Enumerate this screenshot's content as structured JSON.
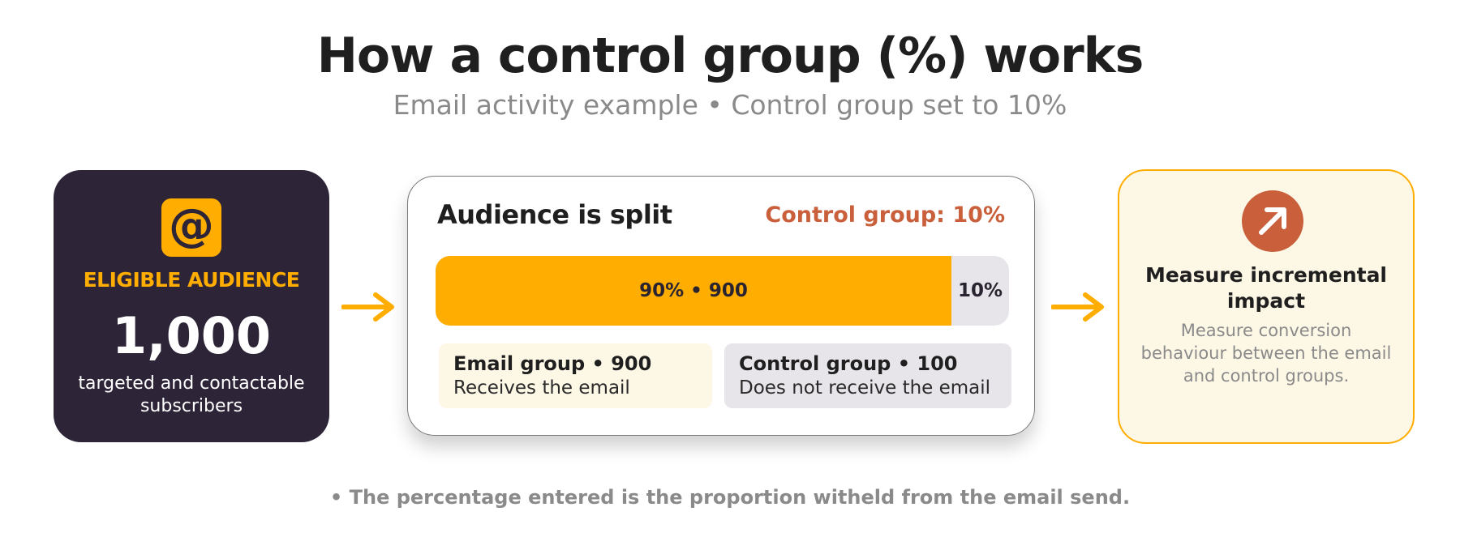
{
  "header": {
    "title": "How a control group (%) works",
    "subtitle": "Email activity example • Control group set to 10%"
  },
  "eligible": {
    "icon": "at-sign-icon",
    "icon_glyph": "@",
    "label": "ELIGIBLE AUDIENCE",
    "value": "1,000",
    "description": "targeted and contactable subscribers"
  },
  "split": {
    "title": "Audience is split",
    "control_label": "Control group: 10%",
    "email_share": 0.9,
    "bar_email_label": "90% • 900",
    "bar_control_label": "10%",
    "email_group": {
      "name": "Email group • 900",
      "description": "Receives the email"
    },
    "control_group": {
      "name": "Control group • 100",
      "description": "Does not receive the email"
    }
  },
  "impact": {
    "icon": "arrow-up-right-icon",
    "title": "Measure incremental impact",
    "description": "Measure conversion behaviour between the email and control groups."
  },
  "footnote": "• The percentage entered is the proportion witheld from the email send.",
  "colors": {
    "accent_yellow": "#ffad00",
    "accent_orange": "#c9603b",
    "dark_card": "#2d2438",
    "light_gray": "#e7e5ea",
    "cream": "#fdf7e6"
  }
}
